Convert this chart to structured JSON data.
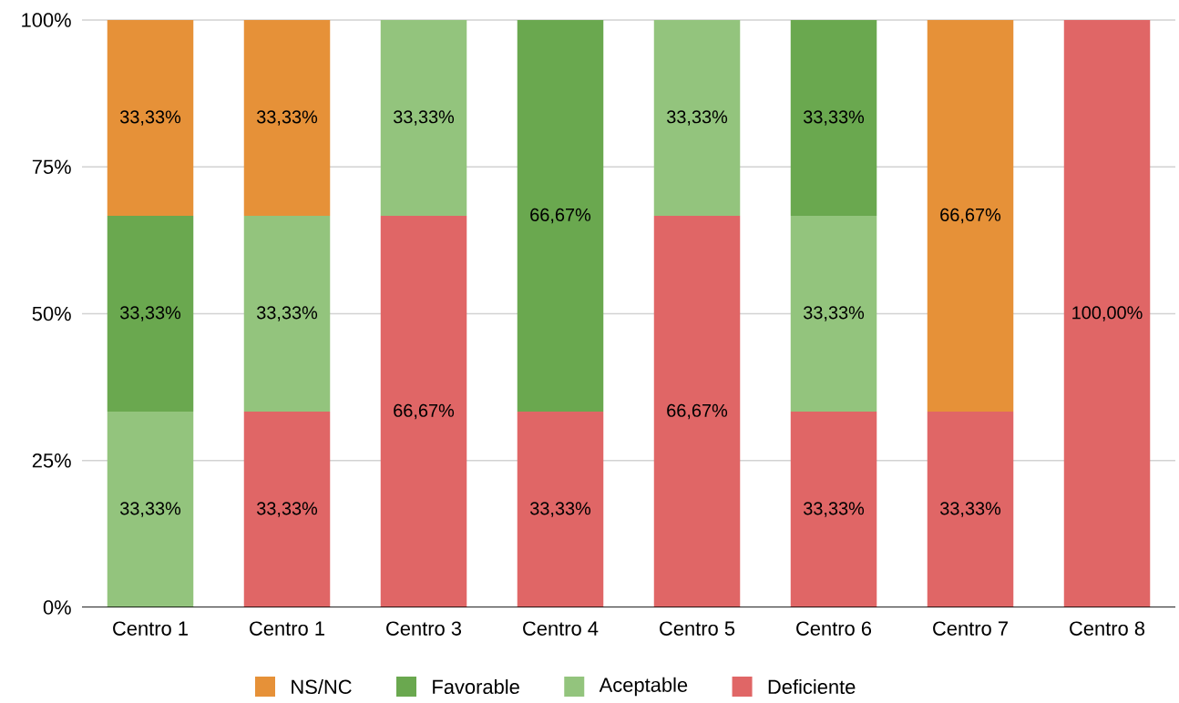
{
  "chart_data": {
    "type": "bar",
    "stacked": true,
    "categories": [
      "Centro 1",
      "Centro 1",
      "Centro 3",
      "Centro 4",
      "Centro 5",
      "Centro 6",
      "Centro 7",
      "Centro 8"
    ],
    "series": [
      {
        "name": "Deficiente",
        "color": "#e06666",
        "values": [
          null,
          33.33,
          66.67,
          33.33,
          66.67,
          33.33,
          33.33,
          100
        ],
        "value_labels": [
          null,
          "33,33%",
          "66,67%",
          "33,33%",
          "66,67%",
          "33,33%",
          "33,33%",
          "100,00%"
        ]
      },
      {
        "name": "Aceptable",
        "color": "#93c47d",
        "values": [
          33.33,
          33.33,
          33.33,
          null,
          33.33,
          33.33,
          null,
          null
        ],
        "value_labels": [
          "33,33%",
          "33,33%",
          "33,33%",
          null,
          "33,33%",
          "33,33%",
          null,
          null
        ]
      },
      {
        "name": "Favorable",
        "color": "#6aa84f",
        "values": [
          33.33,
          null,
          null,
          66.67,
          null,
          33.33,
          null,
          null
        ],
        "value_labels": [
          "33,33%",
          null,
          null,
          "66,67%",
          null,
          "33,33%",
          null,
          null
        ]
      },
      {
        "name": "NS/NC",
        "color": "#e69138",
        "values": [
          33.33,
          33.33,
          null,
          null,
          null,
          null,
          66.67,
          null
        ],
        "value_labels": [
          "33,33%",
          "33,33%",
          null,
          null,
          null,
          null,
          "66,67%",
          null
        ]
      }
    ],
    "ylim": [
      0,
      100
    ],
    "yticks": [
      {
        "value": 0,
        "label": "0%"
      },
      {
        "value": 25,
        "label": "25%"
      },
      {
        "value": 50,
        "label": "50%"
      },
      {
        "value": 75,
        "label": "75%"
      },
      {
        "value": 100,
        "label": "100%"
      }
    ],
    "grid": "y",
    "legend": "bottom"
  }
}
